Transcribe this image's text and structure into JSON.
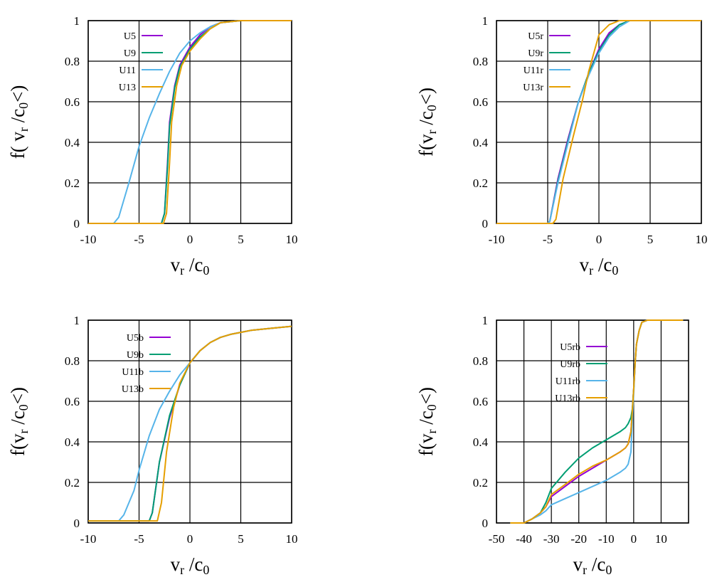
{
  "figure": {
    "colors": {
      "purple": "#9400d3",
      "green": "#009e73",
      "blue": "#56b4e9",
      "orange": "#e69f00"
    }
  },
  "chart_data": [
    {
      "type": "line",
      "title": "",
      "xlabel": {
        "main": "v",
        "sub": "r",
        "rest": " /c",
        "sub2": "0"
      },
      "ylabel": {
        "pre": "f( v",
        "sub": "r",
        "mid": " /c",
        "sub2": "0",
        "post": "<)"
      },
      "xlim": [
        -10,
        10
      ],
      "ylim": [
        0,
        1
      ],
      "xticks": [
        -10,
        -5,
        0,
        5,
        10
      ],
      "yticks": [
        0,
        0.2,
        0.4,
        0.6,
        0.8,
        1
      ],
      "grid": true,
      "legend_position": "top-left",
      "series": [
        {
          "name": "U5",
          "color": "#9400d3",
          "x": [
            -10,
            -2.8,
            -2.5,
            -2.2,
            -2.0,
            -1.5,
            -1.0,
            0,
            1,
            2,
            3,
            5,
            10
          ],
          "y": [
            0,
            0,
            0.05,
            0.3,
            0.5,
            0.68,
            0.78,
            0.87,
            0.93,
            0.97,
            0.99,
            1,
            1
          ]
        },
        {
          "name": "U9",
          "color": "#009e73",
          "x": [
            -10,
            -2.8,
            -2.5,
            -2.2,
            -2.0,
            -1.5,
            -1.0,
            0,
            1,
            2,
            3,
            5,
            10
          ],
          "y": [
            0,
            0,
            0.05,
            0.28,
            0.48,
            0.67,
            0.77,
            0.86,
            0.92,
            0.96,
            0.99,
            1,
            1
          ]
        },
        {
          "name": "U11",
          "color": "#56b4e9",
          "x": [
            -10,
            -7.5,
            -7,
            -6,
            -5,
            -4,
            -3,
            -2,
            -1,
            0,
            1,
            2,
            3,
            5,
            10
          ],
          "y": [
            0,
            0,
            0.03,
            0.2,
            0.38,
            0.52,
            0.64,
            0.75,
            0.84,
            0.9,
            0.94,
            0.97,
            0.99,
            1,
            1
          ]
        },
        {
          "name": "U13",
          "color": "#e69f00",
          "x": [
            -10,
            -2.6,
            -2.3,
            -2.0,
            -1.8,
            -1.3,
            -0.8,
            0,
            1,
            2,
            3,
            5,
            10
          ],
          "y": [
            0,
            0,
            0.05,
            0.3,
            0.5,
            0.68,
            0.78,
            0.85,
            0.91,
            0.96,
            0.99,
            1,
            1
          ]
        }
      ]
    },
    {
      "type": "line",
      "title": "",
      "xlabel": {
        "main": "v",
        "sub": "r",
        "rest": " /c",
        "sub2": "0"
      },
      "ylabel": {
        "pre": "f(v",
        "sub": "r",
        "mid": " /c",
        "sub2": "0",
        "post": "<)"
      },
      "xlim": [
        -10,
        10
      ],
      "ylim": [
        0,
        1
      ],
      "xticks": [
        -10,
        -5,
        0,
        5,
        10
      ],
      "yticks": [
        0,
        0.2,
        0.4,
        0.6,
        0.8,
        1
      ],
      "grid": true,
      "legend_position": "top-left",
      "series": [
        {
          "name": "U5r",
          "color": "#9400d3",
          "x": [
            -10,
            -5,
            -4.8,
            -4,
            -3,
            -2,
            -1,
            0,
            1,
            2,
            3,
            5,
            10
          ],
          "y": [
            0,
            0,
            0.01,
            0.22,
            0.42,
            0.6,
            0.74,
            0.86,
            0.94,
            0.98,
            1,
            1,
            1
          ]
        },
        {
          "name": "U9r",
          "color": "#009e73",
          "x": [
            -10,
            -5,
            -4.8,
            -4,
            -3,
            -2,
            -1,
            0,
            1,
            2,
            3,
            5,
            10
          ],
          "y": [
            0,
            0,
            0.01,
            0.21,
            0.41,
            0.6,
            0.74,
            0.85,
            0.93,
            0.98,
            1,
            1,
            1
          ]
        },
        {
          "name": "U11r",
          "color": "#56b4e9",
          "x": [
            -10,
            -5,
            -4.8,
            -4,
            -3,
            -2,
            -1,
            0,
            1,
            2,
            3,
            5,
            10
          ],
          "y": [
            0,
            0,
            0.01,
            0.2,
            0.4,
            0.6,
            0.73,
            0.84,
            0.92,
            0.97,
            1,
            1,
            1
          ]
        },
        {
          "name": "U13r",
          "color": "#e69f00",
          "x": [
            -10,
            -4.5,
            -4.2,
            -3.5,
            -2.5,
            -1.6,
            -1,
            0,
            1,
            2,
            3,
            5,
            10
          ],
          "y": [
            0,
            0,
            0.02,
            0.22,
            0.43,
            0.61,
            0.75,
            0.93,
            0.98,
            1,
            1,
            1,
            1
          ]
        }
      ]
    },
    {
      "type": "line",
      "title": "",
      "xlabel": {
        "main": "v",
        "sub": "r",
        "rest": " /c",
        "sub2": "0"
      },
      "ylabel": {
        "pre": "f(v",
        "sub": "r",
        "mid": " /c",
        "sub2": "0",
        "post": "<)"
      },
      "xlim": [
        -10,
        10
      ],
      "ylim": [
        0,
        1
      ],
      "xticks": [
        -10,
        -5,
        0,
        5,
        10
      ],
      "yticks": [
        0,
        0.2,
        0.4,
        0.6,
        0.8,
        1
      ],
      "grid": true,
      "legend_position": "top-left",
      "series": [
        {
          "name": "U5b",
          "color": "#9400d3",
          "x": [
            -10,
            -4,
            -3.7,
            -3,
            -2,
            -1,
            0,
            1,
            2,
            3,
            4,
            5,
            6,
            8,
            10
          ],
          "y": [
            0.01,
            0.01,
            0.05,
            0.3,
            0.52,
            0.68,
            0.79,
            0.85,
            0.89,
            0.915,
            0.93,
            0.94,
            0.95,
            0.96,
            0.97
          ]
        },
        {
          "name": "U9b",
          "color": "#009e73",
          "x": [
            -10,
            -4,
            -3.7,
            -3,
            -2,
            -1,
            0,
            1,
            2,
            3,
            4,
            5,
            6,
            8,
            10
          ],
          "y": [
            0.01,
            0.01,
            0.05,
            0.3,
            0.53,
            0.68,
            0.79,
            0.85,
            0.89,
            0.915,
            0.93,
            0.94,
            0.95,
            0.96,
            0.97
          ]
        },
        {
          "name": "U11b",
          "color": "#56b4e9",
          "x": [
            -10,
            -7,
            -6.5,
            -5.5,
            -5,
            -4,
            -3,
            -2,
            -1,
            0,
            1,
            2,
            3,
            4,
            5,
            6,
            8,
            10
          ],
          "y": [
            0.01,
            0.01,
            0.04,
            0.16,
            0.26,
            0.43,
            0.56,
            0.65,
            0.73,
            0.79,
            0.85,
            0.89,
            0.915,
            0.93,
            0.94,
            0.95,
            0.96,
            0.97
          ]
        },
        {
          "name": "U13b",
          "color": "#e69f00",
          "x": [
            -10,
            -3.2,
            -2.8,
            -2.3,
            -1.6,
            -1,
            0,
            1,
            2,
            3,
            4,
            5,
            6,
            8,
            10
          ],
          "y": [
            0.01,
            0.01,
            0.1,
            0.35,
            0.57,
            0.69,
            0.79,
            0.85,
            0.89,
            0.915,
            0.93,
            0.94,
            0.95,
            0.96,
            0.97
          ]
        }
      ]
    },
    {
      "type": "line",
      "title": "",
      "xlabel": {
        "main": "v",
        "sub": "r",
        "rest": " /c",
        "sub2": "0"
      },
      "ylabel": {
        "pre": "f(v",
        "sub": "r",
        "mid": " /c",
        "sub2": "0",
        "post": "<)"
      },
      "xlim": [
        -50,
        20
      ],
      "ylim": [
        0,
        1
      ],
      "xticks": [
        -50,
        -40,
        -30,
        -20,
        -10,
        0,
        10
      ],
      "yticks": [
        0,
        0.2,
        0.4,
        0.6,
        0.8,
        1
      ],
      "grid": true,
      "legend_position": "top-left",
      "series": [
        {
          "name": "U5rb",
          "color": "#9400d3",
          "x": [
            -45,
            -40,
            -37,
            -34,
            -32,
            -30,
            -25,
            -20,
            -15,
            -10,
            -5,
            -3,
            -2,
            -1,
            -0.5,
            0,
            0.5,
            1,
            2,
            3,
            5,
            10,
            18
          ],
          "y": [
            0,
            0,
            0.02,
            0.05,
            0.08,
            0.13,
            0.18,
            0.23,
            0.27,
            0.31,
            0.35,
            0.37,
            0.39,
            0.45,
            0.55,
            0.66,
            0.78,
            0.88,
            0.95,
            0.99,
            1,
            1,
            1
          ]
        },
        {
          "name": "U9rb",
          "color": "#009e73",
          "x": [
            -45,
            -40,
            -37,
            -34,
            -32,
            -30,
            -25,
            -20,
            -15,
            -10,
            -5,
            -3,
            -2,
            -1,
            -0.5,
            0,
            0.5,
            1,
            2,
            3,
            5,
            10,
            18
          ],
          "y": [
            0,
            0,
            0.02,
            0.05,
            0.1,
            0.17,
            0.25,
            0.32,
            0.37,
            0.41,
            0.45,
            0.47,
            0.49,
            0.52,
            0.56,
            0.66,
            0.78,
            0.88,
            0.95,
            0.99,
            1,
            1,
            1
          ]
        },
        {
          "name": "U11rb",
          "color": "#56b4e9",
          "x": [
            -45,
            -40,
            -37,
            -34,
            -32,
            -30,
            -25,
            -20,
            -15,
            -10,
            -5,
            -3,
            -2,
            -1,
            -0.5,
            0,
            0.5,
            1,
            2,
            3,
            5,
            10,
            18
          ],
          "y": [
            0,
            0,
            0.02,
            0.04,
            0.06,
            0.09,
            0.12,
            0.15,
            0.18,
            0.21,
            0.25,
            0.27,
            0.29,
            0.35,
            0.5,
            0.64,
            0.78,
            0.88,
            0.95,
            0.99,
            1,
            1,
            1
          ]
        },
        {
          "name": "U13rb",
          "color": "#e69f00",
          "x": [
            -45,
            -40,
            -37,
            -34,
            -32,
            -30,
            -25,
            -20,
            -15,
            -10,
            -5,
            -3,
            -2,
            -1,
            -0.5,
            0,
            0.5,
            1,
            2,
            3,
            5,
            10,
            18
          ],
          "y": [
            0,
            0,
            0.02,
            0.05,
            0.08,
            0.14,
            0.19,
            0.24,
            0.28,
            0.31,
            0.35,
            0.37,
            0.39,
            0.45,
            0.55,
            0.66,
            0.78,
            0.88,
            0.95,
            0.99,
            1,
            1,
            1
          ]
        }
      ]
    }
  ]
}
